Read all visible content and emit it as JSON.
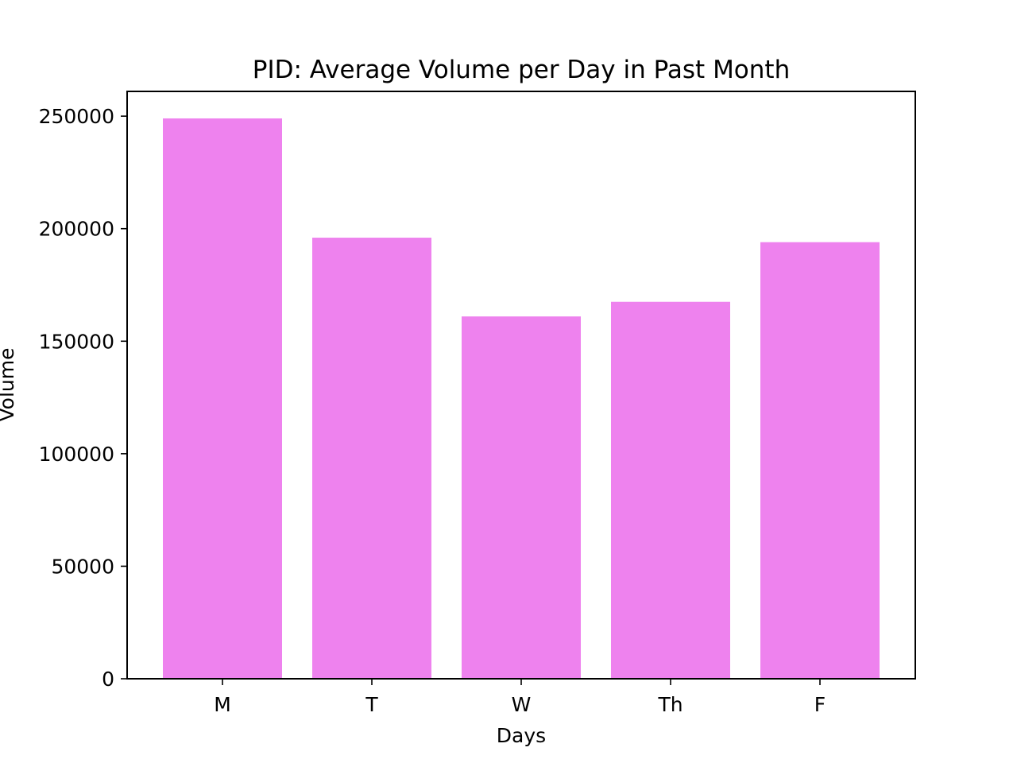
{
  "chart_data": {
    "type": "bar",
    "title": "PID: Average Volume per Day in Past Month",
    "xlabel": "Days",
    "ylabel": "Volume",
    "categories": [
      "M",
      "T",
      "W",
      "Th",
      "F"
    ],
    "values": [
      249000,
      196000,
      161000,
      167500,
      194000
    ],
    "ylim": [
      0,
      261000
    ],
    "yticks": [
      0,
      50000,
      100000,
      150000,
      200000,
      250000
    ],
    "ytick_labels": [
      "0",
      "50000",
      "100000",
      "150000",
      "200000",
      "250000"
    ],
    "grid": false,
    "legend": "none",
    "bar_color": "#ee82ee"
  }
}
